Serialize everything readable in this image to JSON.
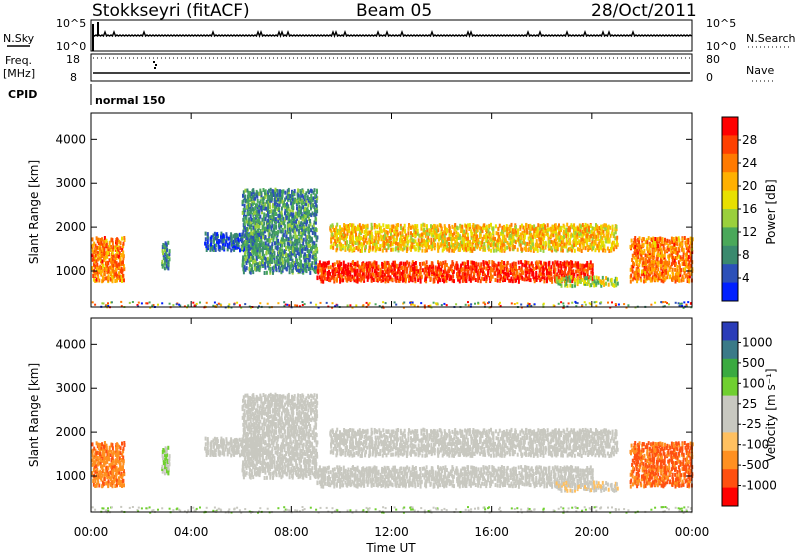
{
  "header": {
    "station": "Stokkseyri (fitACF)",
    "beam": "Beam 05",
    "date": "28/Oct/2011"
  },
  "top_panel": {
    "nsky_label": "N.Sky",
    "nsky_ticks": [
      "10^5",
      "10^0"
    ],
    "nsearch_label": "N.Search",
    "nsearch_ticks": [
      "10^5",
      "10^0"
    ],
    "freq_label_1": "Freq.",
    "freq_label_2": "[MHz]",
    "freq_ticks": [
      "18",
      "8"
    ],
    "nave_label": "Nave",
    "nave_ticks": [
      "80",
      "0"
    ],
    "cpid_label": "CPID",
    "cpid_value": "normal 150"
  },
  "power_panel": {
    "ylabel": "Slant Range [km]",
    "yticks": [
      "1000",
      "2000",
      "3000",
      "4000"
    ],
    "colorbar_label": "Power [dB]",
    "colorbar_ticks": [
      "28",
      "24",
      "20",
      "16",
      "12",
      "8",
      "4"
    ],
    "colors": [
      "#ff0000",
      "#ff4000",
      "#ff7a00",
      "#ffb000",
      "#e8e000",
      "#9ad03c",
      "#4aa85a",
      "#3a8a6e",
      "#2c50b8",
      "#0020ff"
    ]
  },
  "velocity_panel": {
    "ylabel": "Slant Range [km]",
    "yticks": [
      "1000",
      "2000",
      "3000",
      "4000"
    ],
    "colorbar_label": "Velocity [m s⁻¹]",
    "colorbar_ticks": [
      "1000",
      "500",
      "100",
      "25",
      "-25",
      "-100",
      "-500",
      "-1000"
    ],
    "colors": [
      "#2a3cb8",
      "#3a7a88",
      "#3aaa40",
      "#70d030",
      "#c8c8c0",
      "#c8c8c0",
      "#ffc060",
      "#ff9020",
      "#ff5010",
      "#ff0000"
    ],
    "ground_scatter_color": "#c8c8c0"
  },
  "xaxis": {
    "label": "Time UT",
    "ticks": [
      "00:00",
      "04:00",
      "08:00",
      "12:00",
      "16:00",
      "20:00",
      "00:00"
    ]
  },
  "chart_data": {
    "type": "heatmap",
    "title": "Stokkseyri (fitACF)",
    "subtitle": "Beam 05 28/Oct/2011",
    "xlabel": "Time UT",
    "ylabel": "Slant Range [km]",
    "x_range_hours": [
      0,
      24
    ],
    "y_range_km": [
      180,
      4600
    ],
    "power_colorbar": {
      "label": "Power [dB]",
      "range": [
        0,
        30
      ]
    },
    "velocity_colorbar": {
      "label": "Velocity [m s⁻¹]",
      "range": [
        -1000,
        1000
      ]
    },
    "echo_regions": [
      {
        "t_start": 0.0,
        "t_end": 1.3,
        "r_start": 800,
        "r_end": 1800,
        "power_db": 24,
        "velocity": -600
      },
      {
        "t_start": 2.8,
        "t_end": 3.1,
        "r_start": 1100,
        "r_end": 1700,
        "power_db": 10,
        "velocity": 200
      },
      {
        "t_start": 4.5,
        "t_end": 6.8,
        "r_start": 1500,
        "r_end": 1900,
        "power_db": 6,
        "velocity": 0
      },
      {
        "t_start": 6.0,
        "t_end": 9.0,
        "r_start": 1000,
        "r_end": 2900,
        "power_db": 10,
        "velocity": 0
      },
      {
        "t_start": 9.0,
        "t_end": 20.0,
        "r_start": 800,
        "r_end": 1250,
        "power_db": 28,
        "velocity": 0
      },
      {
        "t_start": 9.5,
        "t_end": 21.0,
        "r_start": 1500,
        "r_end": 2100,
        "power_db": 20,
        "velocity": 0
      },
      {
        "t_start": 18.5,
        "t_end": 21.0,
        "r_start": 700,
        "r_end": 900,
        "power_db": 16,
        "velocity": -200
      },
      {
        "t_start": 21.5,
        "t_end": 24.0,
        "r_start": 800,
        "r_end": 1800,
        "power_db": 24,
        "velocity": -700
      }
    ]
  }
}
